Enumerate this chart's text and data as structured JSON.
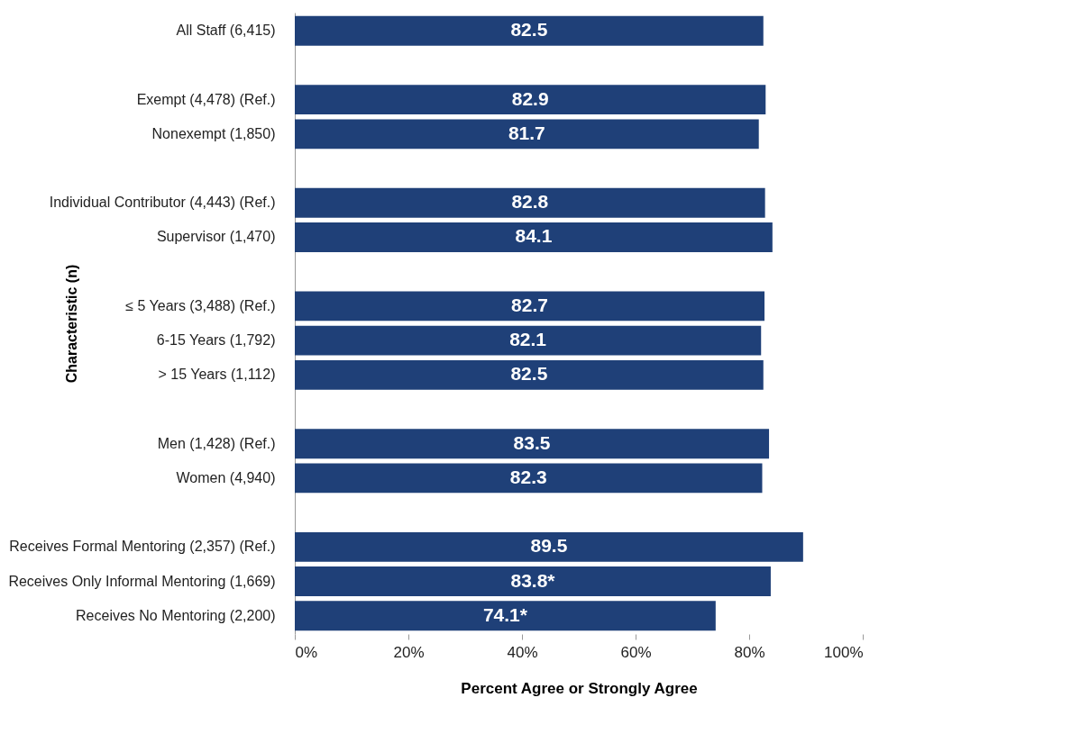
{
  "chart_data": {
    "type": "bar",
    "orientation": "horizontal",
    "xlabel": "Percent Agree or Strongly Agree",
    "ylabel": "Characteristic (n)",
    "categories": [
      "All Staff (6,415)",
      null,
      "Exempt (4,478) (Ref.)",
      "Nonexempt (1,850)",
      null,
      "Individual Contributor (4,443) (Ref.)",
      "Supervisor (1,470)",
      null,
      "≤ 5 Years (3,488) (Ref.)",
      "6-15 Years (1,792)",
      "> 15 Years (1,112)",
      null,
      "Men (1,428) (Ref.)",
      "Women (4,940)",
      null,
      "Receives Formal Mentoring (2,357) (Ref.)",
      "Receives Only Informal Mentoring (1,669)",
      "Receives No Mentoring (2,200)"
    ],
    "values": [
      82.5,
      null,
      82.9,
      81.7,
      null,
      82.8,
      84.1,
      null,
      82.7,
      82.1,
      82.5,
      null,
      83.5,
      82.3,
      null,
      89.5,
      83.8,
      74.1
    ],
    "value_labels": [
      "82.5",
      null,
      "82.9",
      "81.7",
      null,
      "82.8",
      "84.1",
      null,
      "82.7",
      "82.1",
      "82.5",
      null,
      "83.5",
      "82.3",
      null,
      "89.5",
      "83.8*",
      "74.1*"
    ],
    "color": "#1f4078",
    "xlim": [
      0,
      100
    ],
    "xticks": [
      {
        "value": 0,
        "label": "0%"
      },
      {
        "value": 20,
        "label": "20%"
      },
      {
        "value": 40,
        "label": "40%"
      },
      {
        "value": 60,
        "label": "60%"
      },
      {
        "value": 80,
        "label": "80%"
      },
      {
        "value": 100,
        "label": "100%"
      }
    ],
    "grid": false
  }
}
